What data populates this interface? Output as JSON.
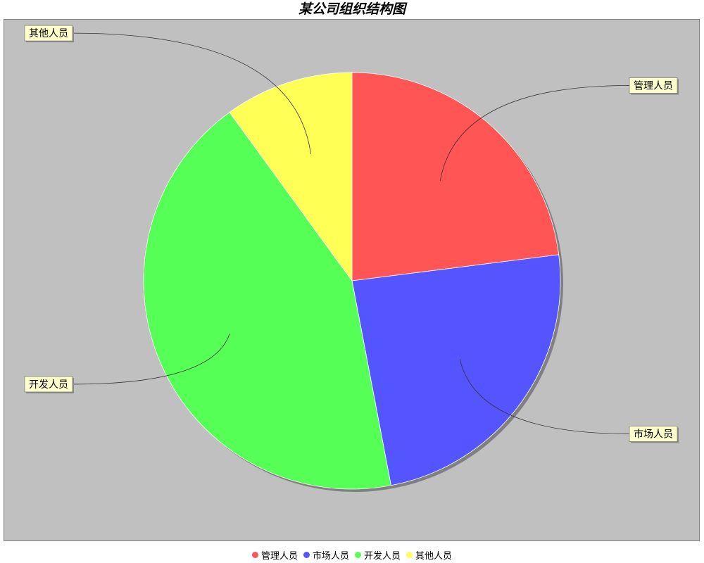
{
  "chart_data": {
    "type": "pie",
    "title": "某公司组织结构图",
    "categories": [
      "管理人员",
      "市场人员",
      "开发人员",
      "其他人员"
    ],
    "values": [
      23,
      24,
      43,
      10
    ],
    "colors": [
      "#ff5555",
      "#5555ff",
      "#55ff55",
      "#ffff55"
    ],
    "legend_position": "bottom",
    "background": "#c0c0c0",
    "label_background": "#ffffcc"
  }
}
